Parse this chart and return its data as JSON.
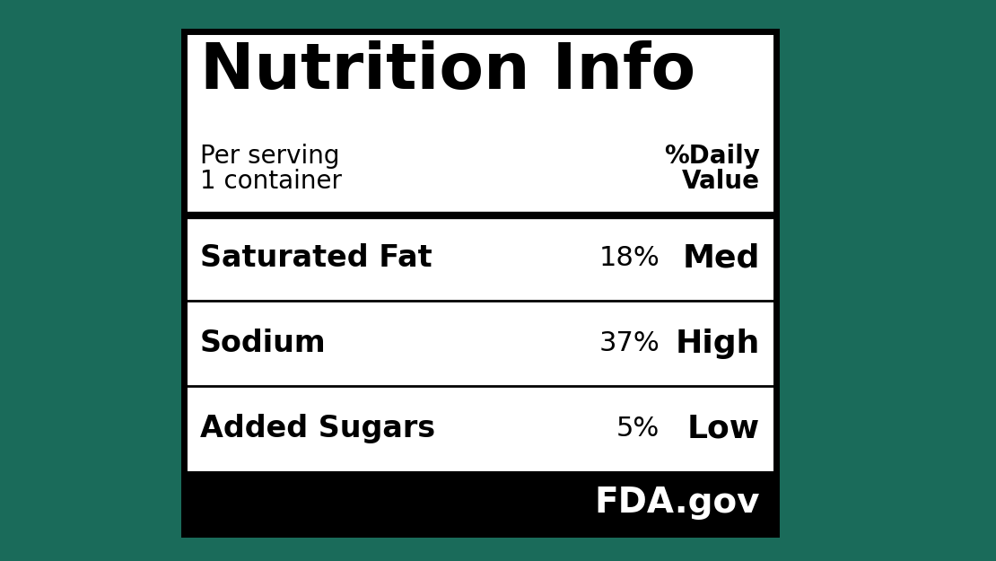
{
  "title": "Nutrition Info",
  "subtitle_left1": "Per serving",
  "subtitle_left2": "1 container",
  "subtitle_right1": "%Daily",
  "subtitle_right2": "Value",
  "rows": [
    {
      "label": "Saturated Fat",
      "pct": "18%",
      "level": "Med"
    },
    {
      "label": "Sodium",
      "pct": "37%",
      "level": "High"
    },
    {
      "label": "Added Sugars",
      "pct": "5%",
      "level": "Low"
    }
  ],
  "footer": "FDA.gov",
  "bg_outer": "#1a6b5a",
  "bg_label": "#ffffff",
  "bg_footer": "#000000",
  "text_color": "#000000",
  "footer_text_color": "#ffffff",
  "border_color": "#000000",
  "title_fontsize": 52,
  "subtitle_fontsize": 20,
  "row_label_fontsize": 24,
  "row_pct_fontsize": 22,
  "row_level_fontsize": 26,
  "footer_fontsize": 28
}
